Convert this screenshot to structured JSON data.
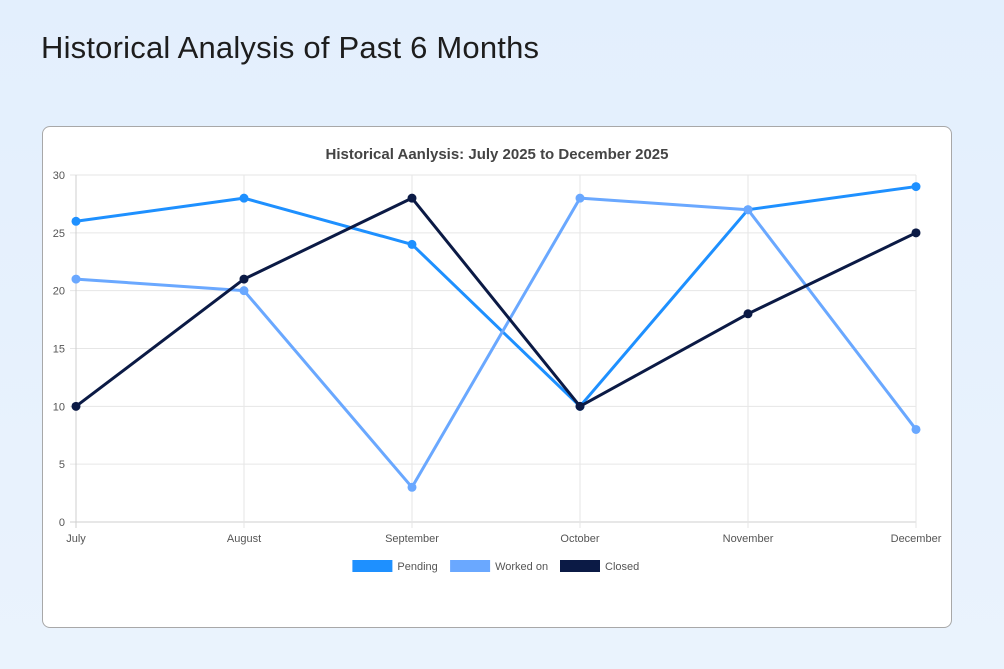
{
  "page": {
    "title": "Historical Analysis of Past 6 Months"
  },
  "chart_data": {
    "type": "line",
    "title": "Historical Aanlysis: July 2025 to December 2025",
    "xlabel": "",
    "ylabel": "",
    "categories": [
      "July",
      "August",
      "September",
      "October",
      "November",
      "December"
    ],
    "ylim": [
      0,
      30
    ],
    "yticks": [
      0,
      5,
      10,
      15,
      20,
      25,
      30
    ],
    "grid": true,
    "legend_position": "bottom",
    "series": [
      {
        "name": "Pending",
        "color": "#1e90ff",
        "values": [
          26,
          28,
          24,
          10,
          27,
          29
        ]
      },
      {
        "name": "Worked on",
        "color": "#6aa8ff",
        "values": [
          21,
          20,
          3,
          28,
          27,
          8
        ]
      },
      {
        "name": "Closed",
        "color": "#0b1a45",
        "values": [
          10,
          21,
          28,
          10,
          18,
          25
        ]
      }
    ]
  }
}
